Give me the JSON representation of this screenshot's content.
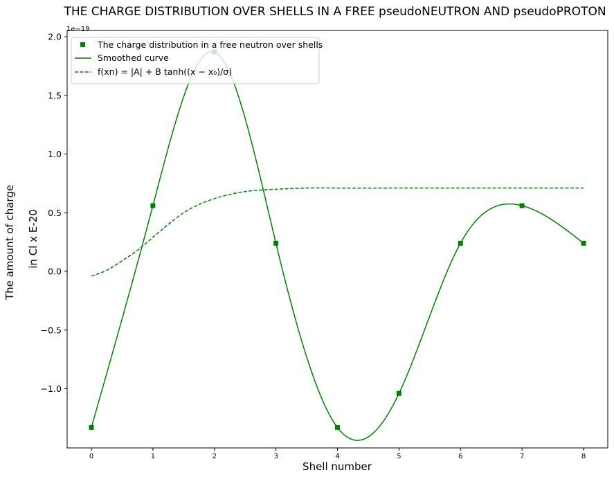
{
  "chart_data": {
    "type": "line",
    "title": "THE CHARGE DISTRIBUTION OVER SHELLS IN A FREE pseudoNEUTRON AND pseudoPROTON",
    "xlabel": "Shell number",
    "ylabel_line1": "The amount of charge",
    "ylabel_line2": "in Cl x E-20",
    "y_offset_text": "1e−19",
    "xlim": [
      -0.4,
      8.4
    ],
    "ylim": [
      -1.5,
      2.0
    ],
    "x_ticks": [
      0,
      1,
      2,
      3,
      4,
      5,
      6,
      7,
      8
    ],
    "y_ticks": [
      -1.0,
      -0.5,
      0.0,
      0.5,
      1.0,
      1.5,
      2.0
    ],
    "y_tick_labels": [
      "−1.0",
      "−0.5",
      "0.0",
      "0.5",
      "1.0",
      "1.5",
      "2.0"
    ],
    "grid": false,
    "legend_position": "top-left",
    "series": [
      {
        "name": "The charge distribution in a free neutron over shells",
        "style": "markers",
        "color": "#008000",
        "x": [
          0,
          1,
          2,
          3,
          4,
          5,
          6,
          7,
          8
        ],
        "y": [
          -1.33,
          0.56,
          1.87,
          0.24,
          -1.33,
          -1.04,
          0.24,
          0.56,
          0.24
        ]
      },
      {
        "name": "Smoothed curve",
        "style": "solid",
        "color": "#008000",
        "x": [
          0,
          1,
          2,
          3,
          4,
          5,
          6,
          7,
          8
        ],
        "y": [
          -1.33,
          0.56,
          1.87,
          0.24,
          -1.33,
          -1.04,
          0.24,
          0.56,
          0.24
        ]
      },
      {
        "name": "f(xn) = |A| + B tanh((x − x₀)/σ)",
        "style": "dashed",
        "color": "#008000",
        "x": [
          0,
          0.25,
          0.5,
          0.75,
          1.0,
          1.25,
          1.5,
          1.75,
          2.0,
          2.5,
          3.0,
          3.5,
          4.0,
          5.0,
          6.0,
          7.0,
          8.0
        ],
        "y": [
          -0.04,
          0.01,
          0.09,
          0.18,
          0.29,
          0.4,
          0.5,
          0.57,
          0.62,
          0.68,
          0.7,
          0.71,
          0.71,
          0.71,
          0.71,
          0.71,
          0.71
        ]
      }
    ]
  }
}
